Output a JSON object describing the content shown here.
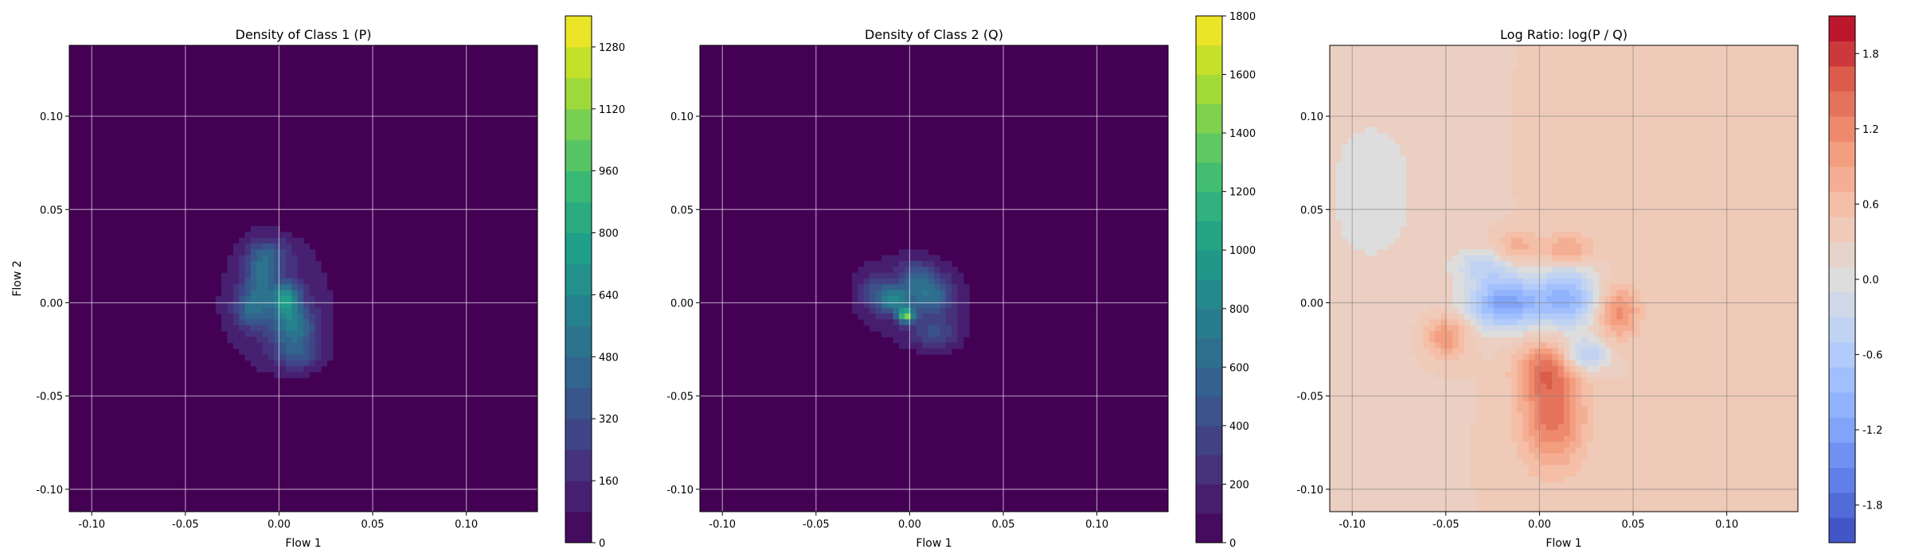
{
  "chart_data": [
    {
      "type": "heatmap",
      "title": "Density of Class 1 (P)",
      "xlabel": "Flow 1",
      "ylabel": "Flow 2",
      "xlim": [
        -0.112,
        0.138
      ],
      "ylim": [
        -0.112,
        0.138
      ],
      "xticks": [
        "-0.10",
        "-0.05",
        "0.00",
        "0.05",
        "0.10"
      ],
      "xtick_values": [
        -0.1,
        -0.05,
        0.0,
        0.05,
        0.1
      ],
      "yticks": [
        "-0.10",
        "-0.05",
        "0.00",
        "0.05",
        "0.10"
      ],
      "ytick_values": [
        -0.1,
        -0.05,
        0.0,
        0.05,
        0.1
      ],
      "grid": true,
      "colormap": "viridis",
      "background_color": "#440154",
      "colorbar": {
        "min": 0,
        "max": 1360,
        "levels": 17,
        "tick_values": [
          0,
          160,
          320,
          480,
          640,
          800,
          960,
          1120,
          1280
        ],
        "tick_labels": [
          "0",
          "160",
          "320",
          "480",
          "640",
          "800",
          "960",
          "1120",
          "1280"
        ]
      },
      "blobs": [
        {
          "x": -0.002,
          "y": 0.0,
          "sx": 0.024,
          "sy": 0.028,
          "amp": 170
        },
        {
          "x": -0.01,
          "y": 0.01,
          "sx": 0.006,
          "sy": 0.012,
          "amp": 360
        },
        {
          "x": 0.004,
          "y": 0.002,
          "sx": 0.005,
          "sy": 0.006,
          "amp": 560
        },
        {
          "x": 0.008,
          "y": -0.012,
          "sx": 0.008,
          "sy": 0.007,
          "amp": 420
        },
        {
          "x": 0.01,
          "y": -0.027,
          "sx": 0.009,
          "sy": 0.006,
          "amp": 300
        },
        {
          "x": -0.016,
          "y": -0.004,
          "sx": 0.006,
          "sy": 0.006,
          "amp": 250
        },
        {
          "x": -0.005,
          "y": 0.026,
          "sx": 0.008,
          "sy": 0.006,
          "amp": 230
        }
      ]
    },
    {
      "type": "heatmap",
      "title": "Density of Class 2 (Q)",
      "xlabel": "Flow 1",
      "ylabel": "",
      "xlim": [
        -0.112,
        0.138
      ],
      "ylim": [
        -0.112,
        0.138
      ],
      "xticks": [
        "-0.10",
        "-0.05",
        "0.00",
        "0.05",
        "0.10"
      ],
      "xtick_values": [
        -0.1,
        -0.05,
        0.0,
        0.05,
        0.1
      ],
      "yticks": [
        "-0.10",
        "-0.05",
        "0.00",
        "0.05",
        "0.10"
      ],
      "ytick_values": [
        -0.1,
        -0.05,
        0.0,
        0.05,
        0.1
      ],
      "grid": true,
      "colormap": "viridis",
      "background_color": "#440154",
      "colorbar": {
        "min": 0,
        "max": 1800,
        "levels": 18,
        "tick_values": [
          0,
          200,
          400,
          600,
          800,
          1000,
          1200,
          1400,
          1600,
          1800
        ],
        "tick_labels": [
          "0",
          "200",
          "400",
          "600",
          "800",
          "1000",
          "1200",
          "1400",
          "1600",
          "1800"
        ]
      },
      "blobs": [
        {
          "x": 0.0,
          "y": 0.003,
          "sx": 0.024,
          "sy": 0.02,
          "amp": 190
        },
        {
          "x": -0.008,
          "y": 0.002,
          "sx": 0.006,
          "sy": 0.005,
          "amp": 600
        },
        {
          "x": -0.002,
          "y": -0.007,
          "sx": 0.003,
          "sy": 0.0025,
          "amp": 1200
        },
        {
          "x": 0.012,
          "y": 0.004,
          "sx": 0.008,
          "sy": 0.007,
          "amp": 480
        },
        {
          "x": 0.004,
          "y": 0.014,
          "sx": 0.006,
          "sy": 0.006,
          "amp": 330
        },
        {
          "x": 0.014,
          "y": -0.016,
          "sx": 0.009,
          "sy": 0.006,
          "amp": 320
        },
        {
          "x": -0.018,
          "y": 0.006,
          "sx": 0.006,
          "sy": 0.007,
          "amp": 280
        }
      ]
    },
    {
      "type": "heatmap",
      "title": "Log Ratio: log(P / Q)",
      "xlabel": "Flow 1",
      "ylabel": "",
      "xlim": [
        -0.112,
        0.138
      ],
      "ylim": [
        -0.112,
        0.138
      ],
      "xticks": [
        "-0.10",
        "-0.05",
        "0.00",
        "0.05",
        "0.10"
      ],
      "xtick_values": [
        -0.1,
        -0.05,
        0.0,
        0.05,
        0.1
      ],
      "yticks": [
        "-0.10",
        "-0.05",
        "0.00",
        "0.05",
        "0.10"
      ],
      "ytick_values": [
        -0.1,
        -0.05,
        0.0,
        0.05,
        0.1
      ],
      "grid": true,
      "colormap": "coolwarm",
      "background_value": 0.3,
      "colorbar": {
        "min": -2.1,
        "max": 2.1,
        "levels": 21,
        "tick_values": [
          -1.8,
          -1.2,
          -0.6,
          0.0,
          0.6,
          1.2,
          1.8
        ],
        "tick_labels": [
          "-1.8",
          "-1.2",
          "-0.6",
          "0.0",
          "0.6",
          "1.2",
          "1.8"
        ]
      },
      "blobs": [
        {
          "x": 0.007,
          "y": -0.06,
          "sx": 0.012,
          "sy": 0.02,
          "amp": 1.1
        },
        {
          "x": 0.002,
          "y": -0.035,
          "sx": 0.01,
          "sy": 0.01,
          "amp": 0.7
        },
        {
          "x": 0.042,
          "y": -0.005,
          "sx": 0.008,
          "sy": 0.01,
          "amp": 0.9
        },
        {
          "x": -0.05,
          "y": -0.018,
          "sx": 0.008,
          "sy": 0.008,
          "amp": 0.8
        },
        {
          "x": 0.015,
          "y": 0.028,
          "sx": 0.01,
          "sy": 0.006,
          "amp": 0.7
        },
        {
          "x": -0.012,
          "y": 0.03,
          "sx": 0.008,
          "sy": 0.006,
          "amp": 0.5
        },
        {
          "x": -0.018,
          "y": 0.0,
          "sx": 0.014,
          "sy": 0.01,
          "amp": -1.5
        },
        {
          "x": 0.015,
          "y": 0.003,
          "sx": 0.012,
          "sy": 0.012,
          "amp": -1.2
        },
        {
          "x": 0.025,
          "y": -0.028,
          "sx": 0.008,
          "sy": 0.006,
          "amp": -0.9
        },
        {
          "x": -0.03,
          "y": 0.02,
          "sx": 0.01,
          "sy": 0.006,
          "amp": -0.6
        },
        {
          "x": 0.08,
          "y": 0.08,
          "sx": 0.04,
          "sy": 0.03,
          "amp": 0.2
        },
        {
          "x": -0.09,
          "y": 0.06,
          "sx": 0.03,
          "sy": 0.05,
          "amp": -0.25
        }
      ]
    }
  ]
}
